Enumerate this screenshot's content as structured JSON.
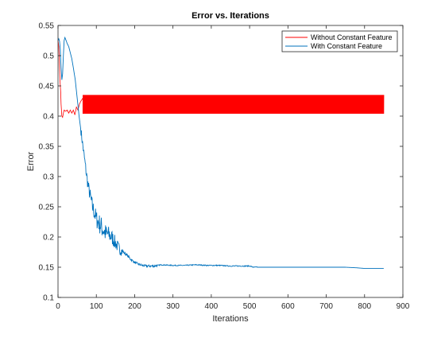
{
  "chart_data": {
    "type": "line",
    "title": "Error vs. Iterations",
    "xlabel": "Iterations",
    "ylabel": "Error",
    "xlim": [
      0,
      900
    ],
    "ylim": [
      0.1,
      0.55
    ],
    "xticks": [
      0,
      100,
      200,
      300,
      400,
      500,
      600,
      700,
      800,
      900
    ],
    "yticks": [
      0.1,
      0.15,
      0.2,
      0.25,
      0.3,
      0.35,
      0.4,
      0.45,
      0.5,
      0.55
    ],
    "grid": false,
    "legend_position": "top-right",
    "series": [
      {
        "name": "Without Constant Feature",
        "color": "#ff0000",
        "line": {
          "x": [
            0,
            1,
            2,
            3,
            4,
            5,
            6,
            7,
            8,
            9,
            10,
            12,
            14,
            16,
            20,
            24,
            28,
            32,
            36,
            40,
            44,
            48,
            52,
            56,
            60,
            65
          ],
          "y": [
            0.525,
            0.52,
            0.515,
            0.5,
            0.48,
            0.462,
            0.45,
            0.44,
            0.42,
            0.41,
            0.4,
            0.398,
            0.405,
            0.41,
            0.408,
            0.41,
            0.405,
            0.41,
            0.405,
            0.41,
            0.402,
            0.415,
            0.41,
            0.42,
            0.425,
            0.43
          ]
        },
        "oscillation": {
          "x_start": 65,
          "x_end": 850,
          "low": 0.404,
          "high": 0.435
        }
      },
      {
        "name": "With Constant Feature",
        "color": "#0072bd",
        "line": {
          "x": [
            0,
            2,
            4,
            6,
            8,
            10,
            12,
            14,
            16,
            18,
            20,
            24,
            28,
            32,
            36,
            40,
            45,
            50,
            55,
            60,
            65,
            70,
            75,
            80,
            85,
            90,
            95,
            100,
            105,
            110,
            115,
            120,
            125,
            130,
            140,
            150,
            160,
            170,
            180,
            190,
            200,
            210,
            220,
            230,
            250,
            270,
            300,
            330,
            360,
            390,
            420,
            450,
            480,
            500,
            510,
            550,
            600,
            650,
            700,
            750,
            780,
            800,
            850
          ],
          "y": [
            0.525,
            0.528,
            0.524,
            0.51,
            0.48,
            0.46,
            0.47,
            0.5,
            0.525,
            0.53,
            0.527,
            0.52,
            0.515,
            0.505,
            0.495,
            0.48,
            0.46,
            0.43,
            0.4,
            0.375,
            0.35,
            0.325,
            0.3,
            0.28,
            0.265,
            0.25,
            0.24,
            0.23,
            0.225,
            0.22,
            0.215,
            0.21,
            0.205,
            0.205,
            0.2,
            0.19,
            0.18,
            0.175,
            0.17,
            0.163,
            0.158,
            0.155,
            0.153,
            0.152,
            0.152,
            0.154,
            0.153,
            0.153,
            0.154,
            0.153,
            0.153,
            0.152,
            0.152,
            0.152,
            0.15,
            0.15,
            0.15,
            0.15,
            0.15,
            0.15,
            0.149,
            0.148,
            0.148
          ]
        },
        "noise": {
          "x_start": 60,
          "x_end": 170,
          "amplitude_max": 0.018
        }
      }
    ]
  }
}
